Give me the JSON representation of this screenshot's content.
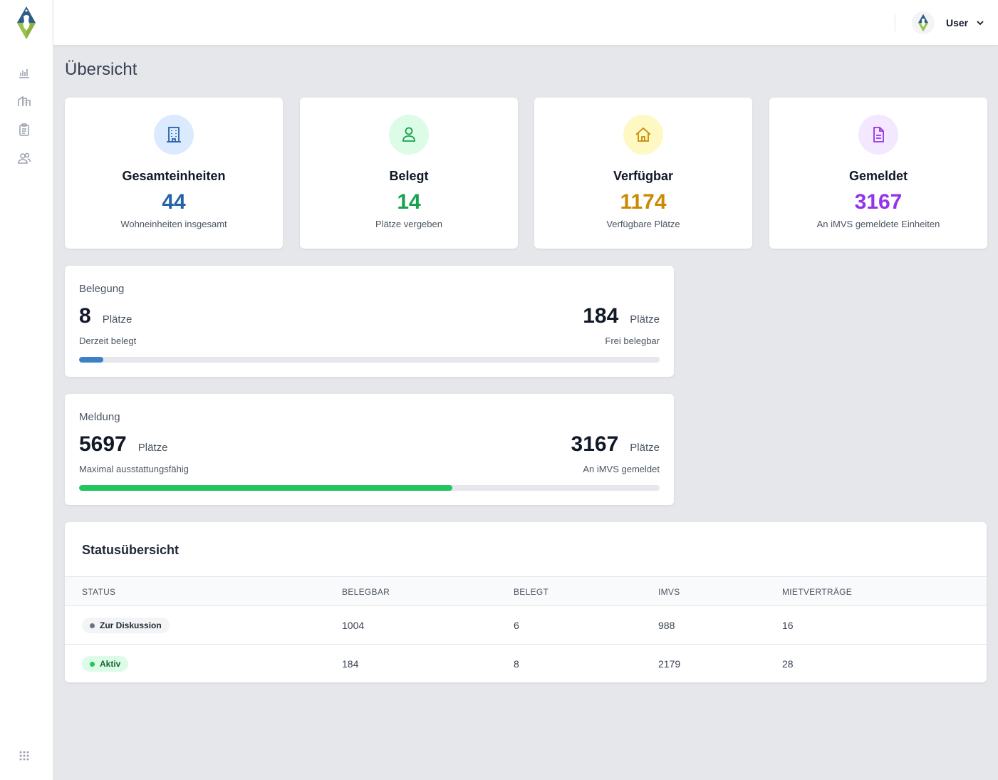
{
  "app": {
    "colors": {
      "blue": "#2563a8",
      "green": "#16a34a",
      "amber": "#ca8a04",
      "purple": "#9333ea",
      "bar_blue": "#3b82c4",
      "bar_green": "#22c55e"
    }
  },
  "sidebar": {
    "logo_icon": "coat-of-arms-logo",
    "items": [
      {
        "icon": "bar-chart-icon"
      },
      {
        "icon": "buildings-icon"
      },
      {
        "icon": "clipboard-icon"
      },
      {
        "icon": "users-icon"
      }
    ],
    "bottom_icon": "apps-grid-icon"
  },
  "header": {
    "user_name": "User",
    "avatar_icon": "coat-of-arms-avatar"
  },
  "page": {
    "title": "Übersicht"
  },
  "stats": [
    {
      "icon": "building-icon",
      "title": "Gesamteinheiten",
      "value": "44",
      "subtitle": "Wohneinheiten insgesamt"
    },
    {
      "icon": "user-icon",
      "title": "Belegt",
      "value": "14",
      "subtitle": "Plätze vergeben"
    },
    {
      "icon": "home-icon",
      "title": "Verfügbar",
      "value": "1174",
      "subtitle": "Verfügbare Plätze"
    },
    {
      "icon": "document-icon",
      "title": "Gemeldet",
      "value": "3167",
      "subtitle": "An iMVS gemeldete Einheiten"
    }
  ],
  "belegung": {
    "title": "Belegung",
    "left_value": "8",
    "left_unit": "Plätze",
    "left_label": "Derzeit belegt",
    "right_value": "184",
    "right_unit": "Plätze",
    "right_label": "Frei belegbar",
    "progress_fraction": 0.042
  },
  "meldung": {
    "title": "Meldung",
    "left_value": "5697",
    "left_unit": "Plätze",
    "left_label": "Maximal ausstattungsfähig",
    "right_value": "3167",
    "right_unit": "Plätze",
    "right_label": "An iMVS gemeldet",
    "progress_fraction": 0.643
  },
  "status_table": {
    "title": "Statusübersicht",
    "columns": [
      "STATUS",
      "BELEGBAR",
      "BELEGT",
      "IMVS",
      "MIETVERTRÄGE"
    ],
    "rows": [
      {
        "status": "Zur Diskussion",
        "belegbar": "1004",
        "belegt": "6",
        "imvs": "988",
        "mietvertraege": "16"
      },
      {
        "status": "Aktiv",
        "belegbar": "184",
        "belegt": "8",
        "imvs": "2179",
        "mietvertraege": "28"
      }
    ]
  }
}
